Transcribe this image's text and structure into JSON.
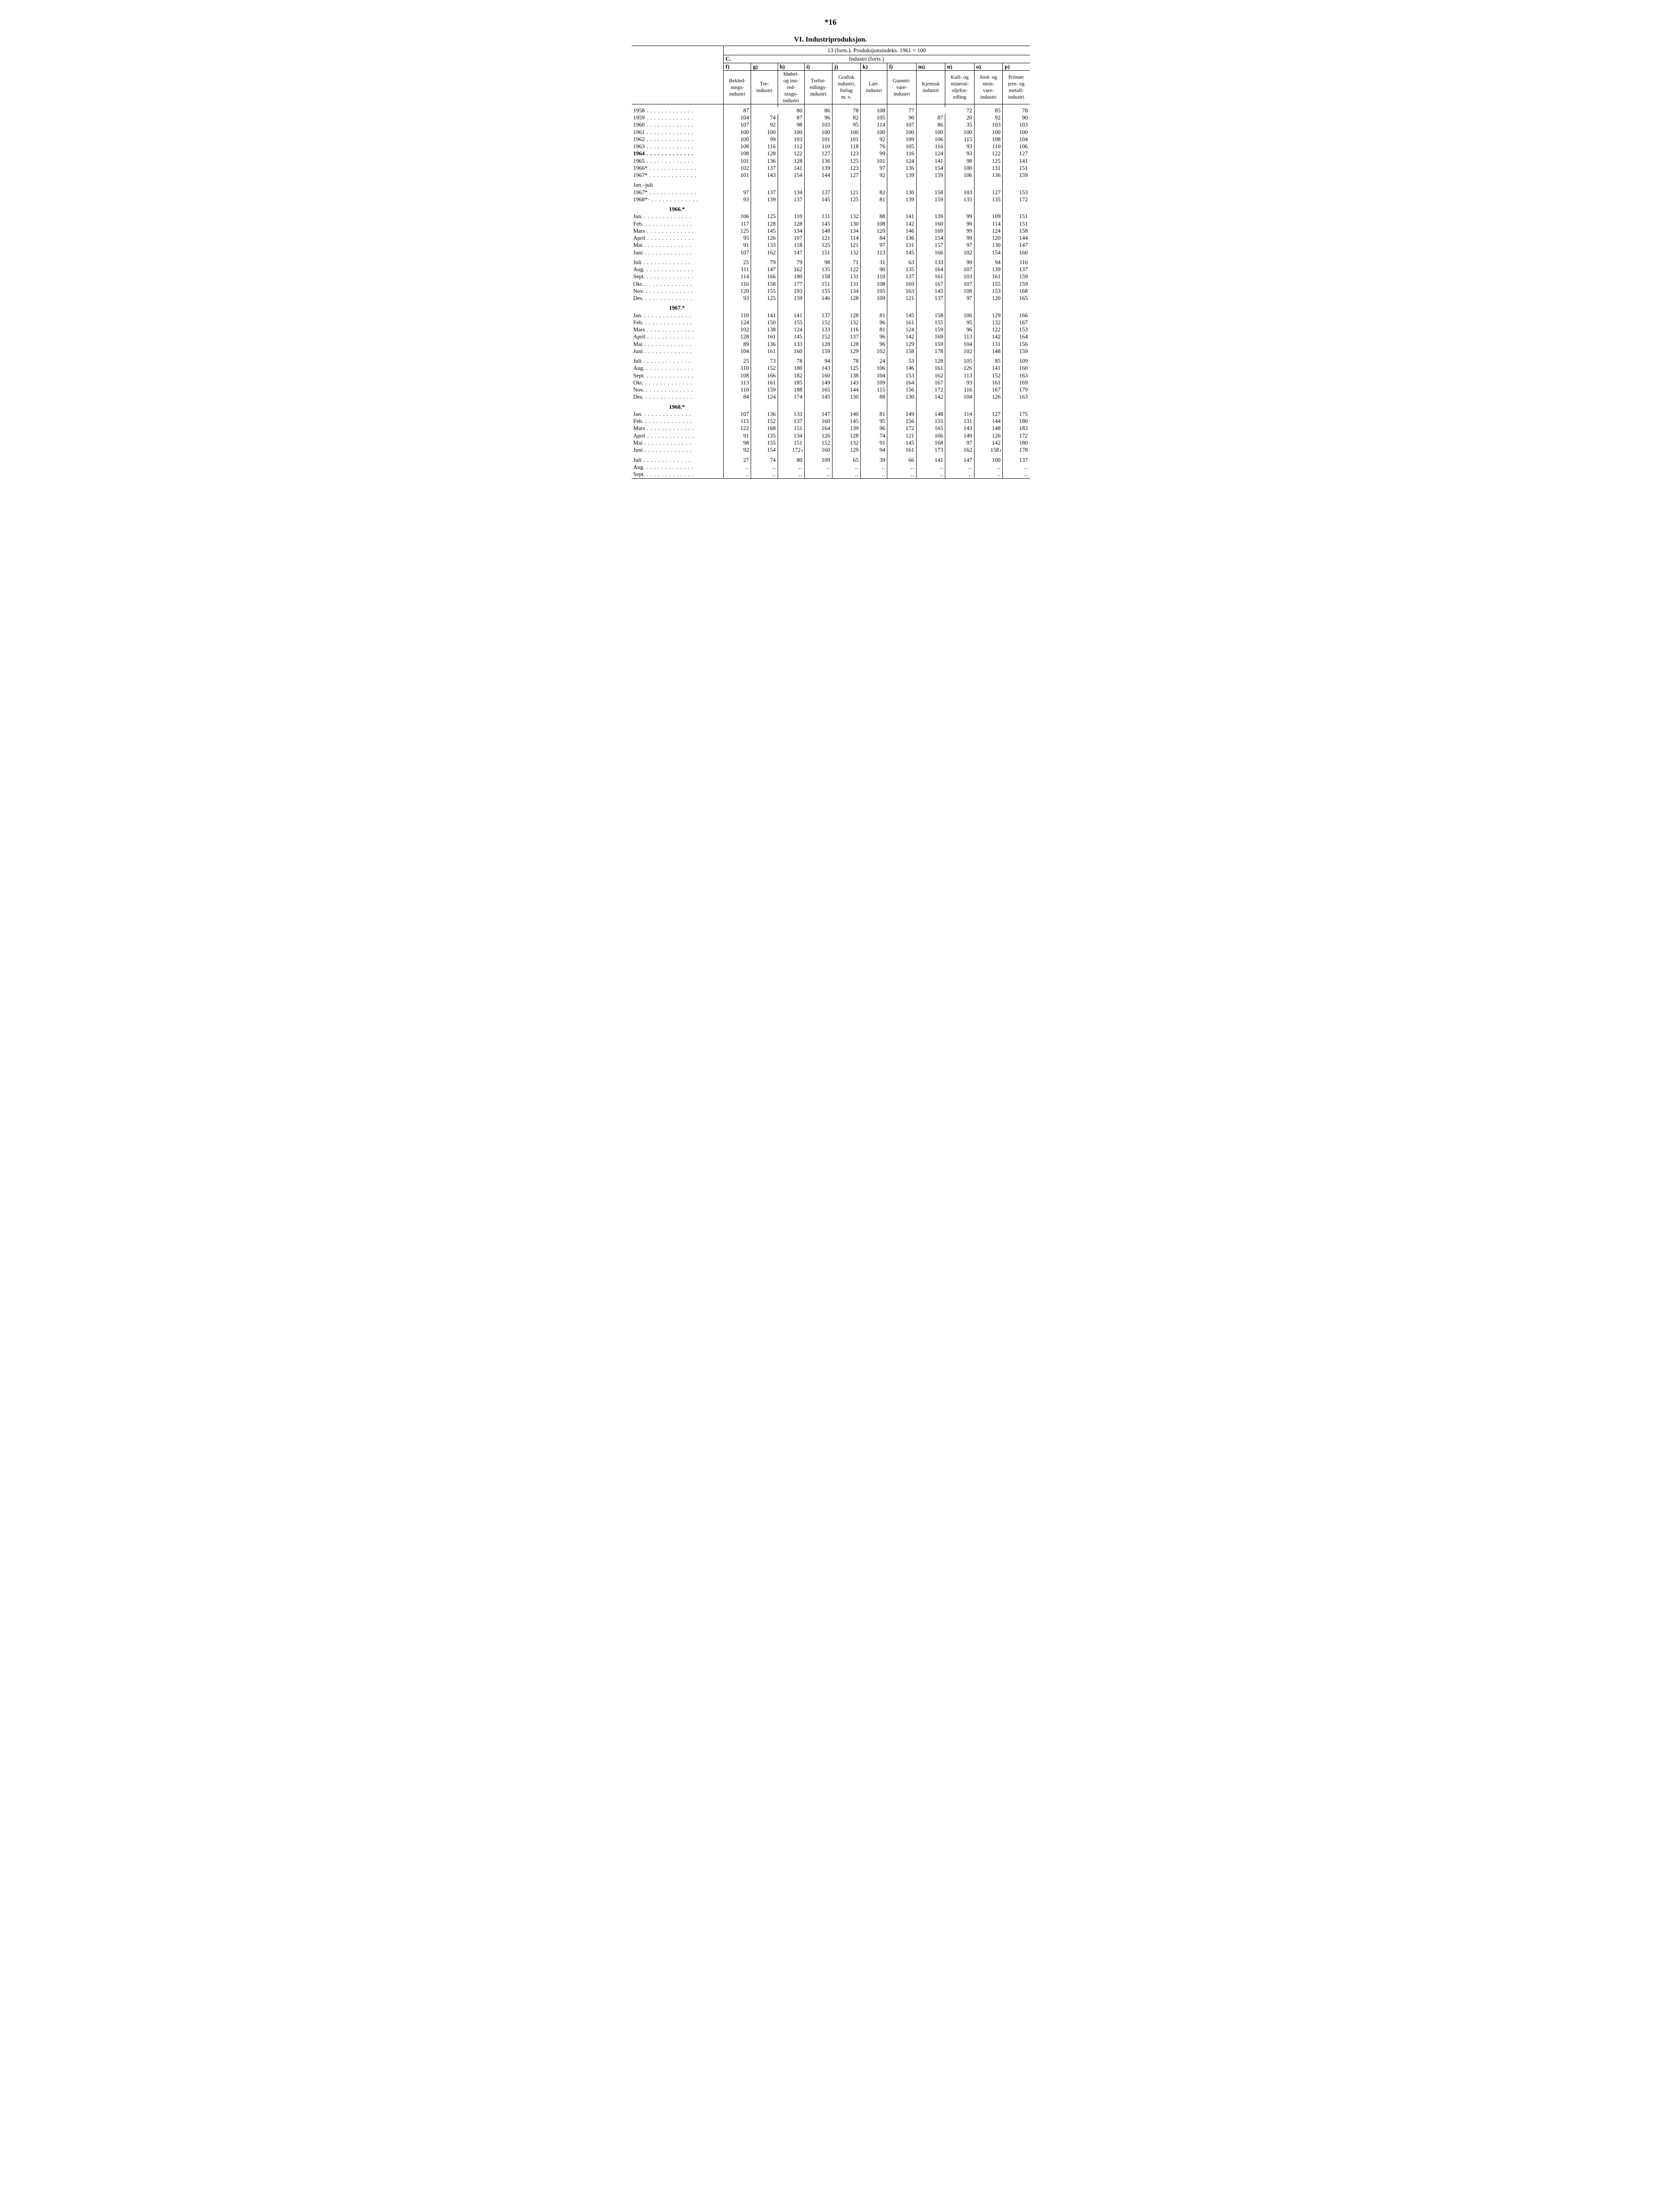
{
  "page_number": "*16",
  "section_title": "VI.  Industriproduksjon.",
  "table_supertitle": "13 (forts.). Produksjonsindeks. 1961 = 100",
  "group_label_c": "C.",
  "group_label_text": "Industri (forts.)",
  "col_letters": [
    "f)",
    "g)",
    "h)",
    "i)",
    "j)",
    "k)",
    "l)",
    "m)",
    "n)",
    "o)",
    "p)"
  ],
  "col_headers": [
    "Bekled-\nnings-\nindustri",
    "Tre-\nindustri",
    "Møbel-\nog inn-\nred-\nnings-\nindustri",
    "Trefor-\nedlings-\nindustri",
    "Grafisk\nindustri,\nforlag\nm. v.",
    "Lær-\nindustri",
    "Gummi-\nvare-\nindustri",
    "Kjemisk\nindustri",
    "Kull- og\nmineral-\noljefor-\nedling",
    "Jord- og\nstein-\nvare-\nindustri",
    "Primær\njern- og\nmetall-\nindustri"
  ],
  "rows_block1": [
    {
      "label": "1958",
      "v": [
        "87",
        "80",
        "",
        "86",
        "78",
        "108",
        "77",
        "72",
        "",
        "85",
        "78"
      ],
      "merge_gh": true,
      "merge_mn": true
    },
    {
      "label": "1959",
      "v": [
        "104",
        "74",
        "87",
        "96",
        "82",
        "105",
        "90",
        "87",
        "20",
        "92",
        "90"
      ]
    },
    {
      "label": "1960",
      "v": [
        "107",
        "92",
        "98",
        "103",
        "95",
        "114",
        "107",
        "86",
        "35",
        "103",
        "103"
      ]
    },
    {
      "label": "1961",
      "v": [
        "100",
        "100",
        "100",
        "100",
        "100",
        "100",
        "100",
        "100",
        "100",
        "100",
        "100"
      ]
    },
    {
      "label": "1962",
      "v": [
        "100",
        "99",
        "103",
        "101",
        "101",
        "92",
        "109",
        "106",
        "115",
        "108",
        "104"
      ]
    },
    {
      "label": "1963",
      "v": [
        "108",
        "116",
        "112",
        "110",
        "118",
        "76",
        "105",
        "116",
        "93",
        "110",
        "106"
      ]
    },
    {
      "label": "1964",
      "v": [
        "108",
        "128",
        "122",
        "127",
        "123",
        "99",
        "116",
        "124",
        "93",
        "122",
        "127"
      ],
      "bold_label": true
    },
    {
      "label": "1965",
      "v": [
        "101",
        "136",
        "128",
        "136",
        "125",
        "101",
        "124",
        "141",
        "98",
        "125",
        "141"
      ]
    },
    {
      "label": "1966*",
      "v": [
        "102",
        "137",
        "141",
        "139",
        "123",
        "97",
        "136",
        "154",
        "100",
        "131",
        "151"
      ]
    },
    {
      "label": "1967*",
      "v": [
        "101",
        "143",
        "154",
        "144",
        "127",
        "92",
        "139",
        "159",
        "106",
        "136",
        "159"
      ]
    }
  ],
  "janjuli_label": "Jan.–juli",
  "rows_janjuli": [
    {
      "label": "1967*",
      "v": [
        "97",
        "137",
        "134",
        "137",
        "121",
        "82",
        "130",
        "158",
        "103",
        "127",
        "153"
      ]
    },
    {
      "label": "1968*·",
      "v": [
        "93",
        "139",
        "137",
        "145",
        "125",
        "81",
        "139",
        "159",
        "135",
        "135",
        "172"
      ]
    }
  ],
  "year_heads": [
    "1966.*",
    "1967.*",
    "1968.*"
  ],
  "rows_1966": [
    {
      "label": "Jan.",
      "v": [
        "106",
        "125",
        "110",
        "131",
        "132",
        "88",
        "141",
        "139",
        "99",
        "109",
        "151"
      ]
    },
    {
      "label": "Feb.",
      "v": [
        "117",
        "128",
        "128",
        "145",
        "130",
        "108",
        "142",
        "160",
        "90",
        "114",
        "151"
      ]
    },
    {
      "label": "Mars",
      "v": [
        "125",
        "145",
        "134",
        "148",
        "134",
        "120",
        "146",
        "169",
        "99",
        "124",
        "158"
      ]
    },
    {
      "label": "April",
      "v": [
        "95",
        "126",
        "107",
        "121",
        "114",
        "84",
        "136",
        "154",
        "99",
        "120",
        "144"
      ]
    },
    {
      "label": "Mai",
      "v": [
        "91",
        "133",
        "118",
        "125",
        "121",
        "97",
        "131",
        "157",
        "97",
        "130",
        "147"
      ]
    },
    {
      "label": "Juni",
      "v": [
        "107",
        "162",
        "147",
        "151",
        "132",
        "113",
        "145",
        "166",
        "102",
        "154",
        "160"
      ]
    },
    {
      "spacer": true
    },
    {
      "label": "Juli",
      "v": [
        "25",
        "79",
        "79",
        "98",
        "71",
        "31",
        "63",
        "133",
        "90",
        "94",
        "116"
      ]
    },
    {
      "label": "Aug.",
      "v": [
        "111",
        "147",
        "162",
        "135",
        "122",
        "90",
        "135",
        "164",
        "107",
        "139",
        "137"
      ]
    },
    {
      "label": "Sept.",
      "v": [
        "114",
        "166",
        "180",
        "158",
        "131",
        "110",
        "137",
        "161",
        "103",
        "161",
        "159"
      ]
    },
    {
      "label": "Okt.",
      "v": [
        "116",
        "158",
        "177",
        "151",
        "131",
        "108",
        "169",
        "167",
        "107",
        "155",
        "159"
      ]
    },
    {
      "label": "Nov.",
      "v": [
        "120",
        "155",
        "193",
        "155",
        "134",
        "105",
        "163",
        "145",
        "108",
        "153",
        "168"
      ]
    },
    {
      "label": "Des.",
      "v": [
        "93",
        "125",
        "159",
        "146",
        "128",
        "109",
        "121",
        "137",
        "97",
        "120",
        "165"
      ]
    }
  ],
  "rows_1967": [
    {
      "label": "Jan.",
      "v": [
        "110",
        "141",
        "141",
        "137",
        "128",
        "81",
        "145",
        "158",
        "106",
        "129",
        "166"
      ]
    },
    {
      "label": "Feb.",
      "v": [
        "124",
        "150",
        "155",
        "152",
        "132",
        "96",
        "161",
        "155",
        "95",
        "132",
        "167"
      ]
    },
    {
      "label": "Mars",
      "v": [
        "102",
        "138",
        "124",
        "133",
        "116",
        "81",
        "124",
        "159",
        "96",
        "122",
        "153"
      ]
    },
    {
      "label": "April",
      "v": [
        "128",
        "161",
        "145",
        "152",
        "137",
        "96",
        "142",
        "169",
        "113",
        "142",
        "164"
      ]
    },
    {
      "label": "Mai",
      "v": [
        "89",
        "136",
        "133",
        "128",
        "128",
        "96",
        "129",
        "159",
        "104",
        "131",
        "156"
      ]
    },
    {
      "label": "Juni",
      "v": [
        "104",
        "161",
        "160",
        "159",
        "129",
        "102",
        "158",
        "178",
        "102",
        "148",
        "159"
      ]
    },
    {
      "spacer": true
    },
    {
      "label": "Juli",
      "v": [
        "25",
        "73",
        "78",
        "94",
        "78",
        "24",
        "53",
        "128",
        "105",
        "85",
        "109"
      ]
    },
    {
      "label": "Aug.",
      "v": [
        "110",
        "152",
        "180",
        "143",
        "125",
        "106",
        "146",
        "161",
        "126",
        "141",
        "160"
      ]
    },
    {
      "label": "Sept.",
      "v": [
        "108",
        "166",
        "182",
        "160",
        "138",
        "104",
        "153",
        "162",
        "113",
        "152",
        "163"
      ]
    },
    {
      "label": "Okt.",
      "v": [
        "113",
        "161",
        "185",
        "149",
        "143",
        "109",
        "164",
        "167",
        "93",
        "161",
        "169"
      ]
    },
    {
      "label": "Nov.",
      "v": [
        "110",
        "159",
        "188",
        "165",
        "144",
        "115",
        "156",
        "172",
        "116",
        "167",
        "179"
      ]
    },
    {
      "label": "Des.",
      "v": [
        "84",
        "124",
        "174",
        "145",
        "130",
        "88",
        "130",
        "142",
        "104",
        "126",
        "163"
      ]
    }
  ],
  "rows_1968": [
    {
      "label": "Jan.",
      "v": [
        "107",
        "136",
        "133",
        "147",
        "140",
        "81",
        "149",
        "148",
        "114",
        "127",
        "175"
      ]
    },
    {
      "label": "Feb.",
      "v": [
        "115",
        "152",
        "137",
        "160",
        "145",
        "95",
        "156",
        "155",
        "131",
        "144",
        "180"
      ]
    },
    {
      "label": "Mars",
      "v": [
        "122",
        "168",
        "151",
        "164",
        "139",
        "96",
        "172",
        "165",
        "143",
        "148",
        "183"
      ]
    },
    {
      "label": "April",
      "v": [
        "91",
        "135",
        "134",
        "126",
        "128",
        "74",
        "121",
        "166",
        "149",
        "126",
        "172"
      ]
    },
    {
      "label": "Mai",
      "v": [
        "98",
        "155",
        "151",
        "152",
        "132",
        "91",
        "145",
        "168",
        "97",
        "142",
        "180"
      ]
    },
    {
      "label": "Juni",
      "v": [
        "92",
        "154",
        "172",
        "160",
        "129",
        "94",
        "161",
        "173",
        "162",
        "158",
        "178"
      ],
      "r_after": [
        2,
        9
      ]
    },
    {
      "spacer": true
    },
    {
      "label": "Juli",
      "v": [
        "27",
        "74",
        "80",
        "109",
        "65",
        "39",
        "66",
        "141",
        "147",
        "100",
        "137"
      ]
    },
    {
      "label": "Aug.",
      "v": [
        "‥",
        "‥",
        "‥",
        "‥",
        "‥",
        "‥",
        "‥",
        "‥",
        "‥",
        "‥",
        "‥"
      ]
    },
    {
      "label": "Sept.",
      "v": [
        "‥",
        "‥",
        "‥",
        "‥",
        "‥",
        "‥",
        "‥",
        "‥",
        "‥",
        "‥",
        "‥"
      ]
    }
  ],
  "dots_fill": " . . . . . . . . . . . . ."
}
